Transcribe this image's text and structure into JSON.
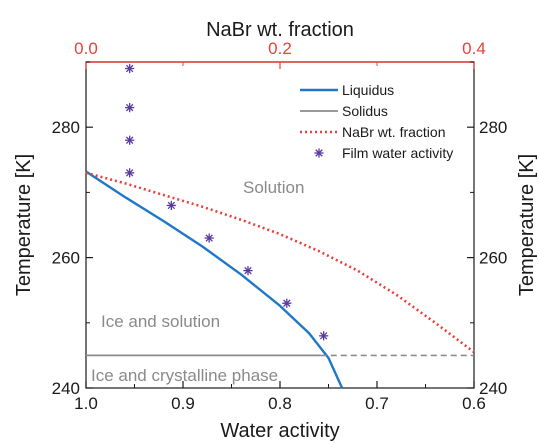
{
  "chart_data": {
    "type": "line",
    "xlabel": "Water activity",
    "ylabel_left": "Temperature [K]",
    "ylabel_right": "Temperature [K]",
    "x2label": "NaBr wt. fraction",
    "x_range": [
      1.0,
      0.6
    ],
    "x_ticks": [
      "1.0",
      "0.9",
      "0.8",
      "0.7",
      "0.6"
    ],
    "x_tick_values": [
      1.0,
      0.9,
      0.8,
      0.7,
      0.6
    ],
    "x2_range": [
      0.0,
      0.4
    ],
    "x2_ticks": [
      "0.0",
      "0.2",
      "0.4"
    ],
    "x2_tick_values": [
      0.0,
      0.2,
      0.4
    ],
    "y_range": [
      240,
      290
    ],
    "y_ticks": [
      "240",
      "260",
      "280"
    ],
    "y_tick_values": [
      240,
      260,
      280
    ],
    "y2_ticks": [
      "240",
      "260",
      "280"
    ],
    "legend_position": "top-right",
    "colors": {
      "liquidus": "#1f77c8",
      "solidus": "#8c8c8c",
      "nabr": "#e8413a",
      "film": "#5b3aa0",
      "top_axis": "#e8413a",
      "annotation": "#8a8a8a"
    },
    "series": [
      {
        "name": "Liquidus",
        "style": "solid",
        "axis": "bottom",
        "x": [
          1.0,
          0.96,
          0.92,
          0.88,
          0.84,
          0.8,
          0.77,
          0.75,
          0.736
        ],
        "y": [
          273.2,
          269.3,
          265.6,
          261.7,
          257.4,
          252.6,
          248.4,
          244.6,
          240.0
        ]
      },
      {
        "name": "Solidus",
        "style": "solid",
        "axis": "bottom",
        "x": [
          1.0,
          0.758
        ],
        "y": [
          245.0,
          245.0
        ]
      },
      {
        "name": "Solidus (extension)",
        "style": "dashed",
        "axis": "bottom",
        "x": [
          0.758,
          0.6
        ],
        "y": [
          245.0,
          245.0
        ]
      },
      {
        "name": "NaBr wt. fraction",
        "style": "dotted",
        "axis": "top",
        "x": [
          0.0,
          0.04,
          0.08,
          0.12,
          0.16,
          0.2,
          0.24,
          0.28,
          0.32,
          0.36,
          0.4
        ],
        "y": [
          273.0,
          271.4,
          269.6,
          267.8,
          265.8,
          263.6,
          261.0,
          258.0,
          254.3,
          250.0,
          245.5
        ]
      },
      {
        "name": "Film water activity",
        "style": "markers",
        "axis": "bottom",
        "x": [
          0.955,
          0.955,
          0.955,
          0.955,
          0.912,
          0.873,
          0.833,
          0.793,
          0.755
        ],
        "y": [
          289,
          283,
          278,
          273,
          268,
          263,
          258,
          253,
          248
        ]
      }
    ],
    "annotations": [
      "Solution",
      "Ice and solution",
      "Ice and crystalline phase"
    ]
  }
}
